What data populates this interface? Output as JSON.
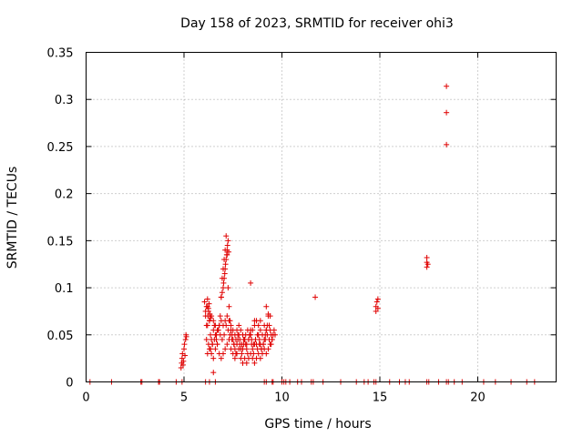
{
  "chart_data": {
    "type": "scatter",
    "title": "Day 158 of 2023, SRMTID for receiver ohi3",
    "xlabel": "GPS time / hours",
    "ylabel": "SRMTID / TECUs",
    "xlim": [
      0,
      24
    ],
    "ylim": [
      0,
      0.35
    ],
    "grid": true,
    "marker": "+",
    "color": "#e00000",
    "xticks": [
      0,
      5,
      10,
      15,
      20
    ],
    "xtick_labels": [
      "0",
      "5",
      "10",
      "15",
      "20"
    ],
    "yticks": [
      0,
      0.05,
      0.1,
      0.15,
      0.2,
      0.25,
      0.3,
      0.35
    ],
    "ytick_labels": [
      "0",
      "0.05",
      "0.1",
      "0.15",
      "0.2",
      "0.25",
      "0.3",
      "0.35"
    ],
    "series": [
      {
        "name": "SRMTID",
        "x": [
          0.2,
          1.3,
          2.8,
          2.85,
          3.7,
          3.75,
          4.6,
          4.9,
          6.1,
          6.3,
          6.6,
          9.1,
          9.2,
          9.5,
          9.55,
          10.0,
          10.1,
          10.2,
          10.4,
          10.8,
          11.0,
          11.5,
          11.6,
          12.1,
          13.0,
          13.8,
          14.2,
          14.4,
          14.7,
          14.8,
          15.5,
          16.0,
          16.3,
          16.5,
          17.4,
          17.5,
          18.0,
          18.4,
          18.5,
          18.8,
          19.2,
          20.3,
          20.9,
          21.7,
          22.5,
          22.9,
          4.85,
          4.88,
          4.9,
          4.92,
          4.95,
          4.97,
          5.0,
          5.02,
          5.05,
          5.08,
          5.1,
          5.12,
          6.05,
          6.1,
          6.15,
          6.2,
          6.25,
          6.3,
          6.35,
          6.4,
          6.45,
          6.5,
          6.55,
          6.6,
          6.65,
          6.7,
          6.75,
          6.8,
          6.85,
          6.9,
          6.95,
          7.0,
          7.05,
          7.1,
          7.15,
          7.2,
          7.25,
          7.3,
          7.35,
          7.4,
          7.45,
          7.5,
          7.55,
          7.6,
          7.65,
          7.7,
          7.75,
          7.8,
          7.85,
          7.9,
          7.95,
          8.0,
          8.05,
          8.1,
          8.15,
          8.2,
          8.25,
          8.3,
          8.35,
          8.4,
          8.45,
          8.5,
          8.55,
          8.6,
          8.65,
          8.7,
          8.75,
          8.8,
          8.85,
          8.9,
          8.95,
          9.0,
          9.05,
          9.1,
          9.15,
          9.2,
          9.25,
          9.3,
          9.35,
          9.4,
          9.45,
          9.5,
          9.55,
          9.6,
          9.65,
          6.2,
          6.3,
          6.4,
          6.5,
          6.6,
          6.7,
          6.8,
          6.9,
          7.0,
          7.1,
          7.2,
          7.3,
          7.4,
          7.5,
          7.6,
          7.7,
          7.8,
          7.9,
          8.0,
          8.1,
          8.2,
          8.3,
          8.4,
          8.5,
          8.6,
          8.7,
          8.8,
          8.9,
          9.0,
          9.1,
          9.2,
          9.3,
          9.4,
          9.5,
          6.15,
          6.25,
          6.35,
          6.45,
          6.55,
          6.65,
          6.75,
          6.85,
          6.95,
          7.05,
          7.15,
          7.25,
          7.35,
          7.45,
          7.55,
          7.65,
          7.75,
          7.85,
          7.95,
          8.05,
          8.15,
          8.25,
          8.35,
          8.45,
          8.55,
          8.65,
          8.75,
          8.85,
          8.95,
          9.05,
          9.15,
          9.25,
          9.35,
          9.45,
          6.2,
          6.3,
          6.4,
          6.5,
          6.6,
          6.7,
          6.8,
          6.9,
          7.0,
          7.1,
          7.2,
          7.3,
          7.4,
          7.5,
          7.6,
          7.7,
          7.8,
          7.9,
          8.0,
          8.1,
          8.2,
          8.3,
          8.4,
          8.5,
          8.6,
          8.7,
          8.8,
          8.9,
          9.0,
          9.1,
          9.2,
          6.1,
          6.15,
          6.2,
          6.22,
          6.25,
          6.28,
          6.3,
          6.32,
          6.35,
          6.9,
          6.95,
          7.0,
          7.02,
          7.05,
          7.08,
          7.1,
          7.12,
          7.15,
          7.18,
          7.2,
          7.22,
          7.25,
          7.28,
          6.5,
          8.4,
          8.6,
          8.9,
          9.2,
          9.3,
          9.4,
          11.7,
          14.8,
          14.8,
          14.85,
          14.9,
          14.9,
          17.4,
          17.4,
          17.4,
          17.45,
          18.4,
          18.4,
          18.4
        ],
        "y": [
          0,
          0,
          0,
          0,
          0,
          0,
          0,
          0,
          0,
          0,
          0,
          0,
          0,
          0,
          0,
          0,
          0,
          0,
          0,
          0,
          0,
          0,
          0,
          0,
          0,
          0,
          0,
          0,
          0,
          0,
          0,
          0,
          0,
          0,
          0,
          0,
          0,
          0,
          0,
          0,
          0,
          0,
          0,
          0,
          0,
          0,
          0.015,
          0.02,
          0.025,
          0.03,
          0.018,
          0.022,
          0.035,
          0.04,
          0.028,
          0.045,
          0.05,
          0.048,
          0.085,
          0.07,
          0.06,
          0.08,
          0.075,
          0.065,
          0.05,
          0.045,
          0.04,
          0.055,
          0.06,
          0.05,
          0.045,
          0.04,
          0.055,
          0.06,
          0.07,
          0.09,
          0.11,
          0.12,
          0.13,
          0.14,
          0.155,
          0.135,
          0.1,
          0.08,
          0.065,
          0.055,
          0.05,
          0.045,
          0.04,
          0.035,
          0.03,
          0.04,
          0.045,
          0.05,
          0.04,
          0.035,
          0.03,
          0.035,
          0.04,
          0.045,
          0.04,
          0.035,
          0.03,
          0.045,
          0.05,
          0.055,
          0.04,
          0.035,
          0.03,
          0.04,
          0.045,
          0.04,
          0.035,
          0.05,
          0.045,
          0.04,
          0.035,
          0.03,
          0.04,
          0.045,
          0.05,
          0.055,
          0.06,
          0.07,
          0.06,
          0.055,
          0.05,
          0.045,
          0.05,
          0.055,
          0.05,
          0.03,
          0.035,
          0.03,
          0.025,
          0.035,
          0.04,
          0.03,
          0.025,
          0.03,
          0.035,
          0.04,
          0.045,
          0.035,
          0.03,
          0.025,
          0.03,
          0.035,
          0.025,
          0.02,
          0.025,
          0.02,
          0.025,
          0.03,
          0.025,
          0.02,
          0.025,
          0.03,
          0.025,
          0.03,
          0.035,
          0.03,
          0.035,
          0.04,
          0.045,
          0.045,
          0.04,
          0.035,
          0.04,
          0.045,
          0.05,
          0.055,
          0.05,
          0.045,
          0.05,
          0.06,
          0.055,
          0.05,
          0.045,
          0.04,
          0.045,
          0.05,
          0.045,
          0.04,
          0.045,
          0.05,
          0.055,
          0.05,
          0.045,
          0.04,
          0.045,
          0.05,
          0.04,
          0.035,
          0.04,
          0.045,
          0.05,
          0.045,
          0.04,
          0.06,
          0.065,
          0.07,
          0.065,
          0.06,
          0.055,
          0.06,
          0.065,
          0.06,
          0.065,
          0.07,
          0.065,
          0.06,
          0.055,
          0.05,
          0.055,
          0.06,
          0.055,
          0.05,
          0.045,
          0.04,
          0.045,
          0.05,
          0.055,
          0.06,
          0.065,
          0.06,
          0.055,
          0.05,
          0.06,
          0.055,
          0.075,
          0.08,
          0.088,
          0.07,
          0.078,
          0.083,
          0.065,
          0.072,
          0.068,
          0.09,
          0.095,
          0.1,
          0.105,
          0.11,
          0.115,
          0.12,
          0.125,
          0.13,
          0.135,
          0.14,
          0.145,
          0.15,
          0.138,
          0.01,
          0.105,
          0.065,
          0.065,
          0.08,
          0.072,
          0.07,
          0.09,
          0.075,
          0.08,
          0.085,
          0.088,
          0.078,
          0.122,
          0.127,
          0.132,
          0.125,
          0.252,
          0.286,
          0.314
        ]
      }
    ]
  }
}
